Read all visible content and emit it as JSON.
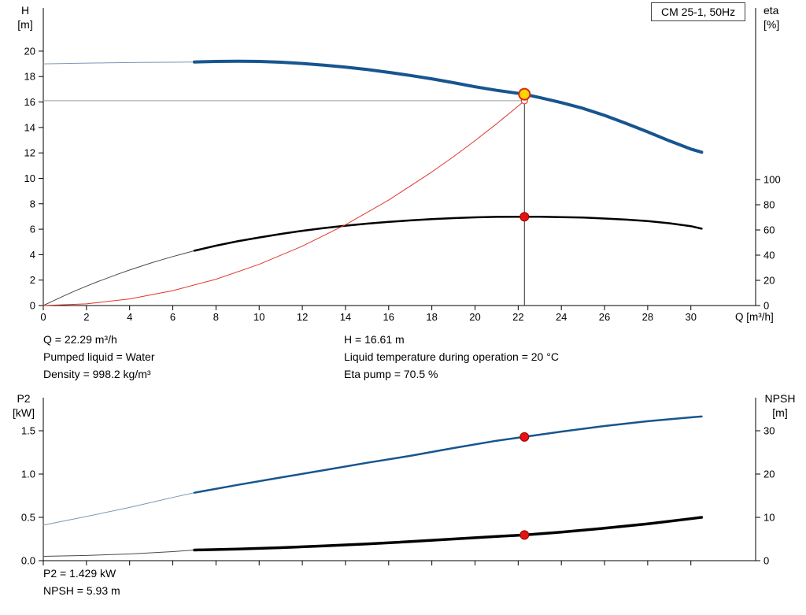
{
  "model_box": {
    "label": "CM 25-1, 50Hz"
  },
  "axis_labels": {
    "h_title": "H",
    "h_unit": "[m]",
    "eta_title": "eta",
    "eta_unit": "[%]",
    "q_label": "Q [m³/h]",
    "p2_title": "P2",
    "p2_unit": "[kW]",
    "npsh_title": "NPSH",
    "npsh_unit": "[m]"
  },
  "annotations": {
    "top_left": [
      "Q = 22.29 m³/h",
      "Pumped liquid = Water",
      "Density = 998.2 kg/m³"
    ],
    "top_right": [
      "H = 16.61 m",
      "Liquid temperature during operation = 20 °C",
      "Eta pump = 70.5 %"
    ],
    "bottom": [
      "P2 = 1.429 kW",
      "NPSH = 5.93 m"
    ]
  },
  "duty_point": {
    "Q": 22.29,
    "H": 16.61,
    "eta": 70.5,
    "P2": 1.429,
    "NPSH": 5.93
  },
  "chart_data": [
    {
      "type": "line",
      "title": "CM 25-1, 50Hz — QH and efficiency curves",
      "xlabel": "Q [m³/h]",
      "xlim": [
        0,
        33
      ],
      "x_ticks": [
        0,
        2,
        4,
        6,
        8,
        10,
        12,
        14,
        16,
        18,
        20,
        22,
        24,
        26,
        28,
        30
      ],
      "left_axis": {
        "label": "H [m]",
        "ticks": [
          0,
          2,
          4,
          6,
          8,
          10,
          12,
          14,
          16,
          18,
          20
        ],
        "lim": [
          0,
          23.4
        ]
      },
      "right_axis": {
        "label": "eta [%]",
        "ticks": [
          0,
          20,
          40,
          60,
          80,
          100
        ],
        "lim": [
          0,
          236.3
        ]
      },
      "grid": false,
      "legend": false,
      "series": [
        {
          "name": "h-curve-low-flow",
          "axis": "left",
          "color": "#7a97b6",
          "width": 1,
          "points": [
            [
              0,
              19.0
            ],
            [
              1.5,
              19.04
            ],
            [
              3,
              19.08
            ],
            [
              4.5,
              19.11
            ],
            [
              6,
              19.13
            ],
            [
              7,
              19.15
            ]
          ]
        },
        {
          "name": "h-curve",
          "axis": "left",
          "color": "#17558f",
          "width": 4,
          "points": [
            [
              7,
              19.15
            ],
            [
              8,
              19.19
            ],
            [
              9,
              19.21
            ],
            [
              10,
              19.19
            ],
            [
              11,
              19.13
            ],
            [
              12,
              19.03
            ],
            [
              13,
              18.9
            ],
            [
              14,
              18.74
            ],
            [
              15,
              18.55
            ],
            [
              16,
              18.33
            ],
            [
              17,
              18.09
            ],
            [
              18,
              17.82
            ],
            [
              19,
              17.52
            ],
            [
              20,
              17.2
            ],
            [
              21,
              16.92
            ],
            [
              22.29,
              16.61
            ],
            [
              23,
              16.35
            ],
            [
              24,
              15.95
            ],
            [
              25,
              15.5
            ],
            [
              26,
              14.95
            ],
            [
              27,
              14.32
            ],
            [
              28,
              13.65
            ],
            [
              29,
              12.95
            ],
            [
              30,
              12.3
            ],
            [
              30.5,
              12.05
            ]
          ]
        },
        {
          "name": "eta-curve-low-flow",
          "axis": "right",
          "color": "#4a4a4a",
          "width": 1,
          "points": [
            [
              0,
              0
            ],
            [
              0.5,
              4
            ],
            [
              1,
              8
            ],
            [
              1.5,
              11.8
            ],
            [
              2,
              15.4
            ],
            [
              2.5,
              18.8
            ],
            [
              3,
              22
            ],
            [
              3.5,
              25.2
            ],
            [
              4,
              28.2
            ],
            [
              4.5,
              31
            ],
            [
              5,
              33.8
            ],
            [
              5.5,
              36.4
            ],
            [
              6,
              38.9
            ],
            [
              6.5,
              41.2
            ],
            [
              7,
              43.5
            ]
          ]
        },
        {
          "name": "eta-curve",
          "axis": "right",
          "color": "#000000",
          "width": 2.5,
          "points": [
            [
              7,
              43.5
            ],
            [
              8,
              47.5
            ],
            [
              9,
              51
            ],
            [
              10,
              54
            ],
            [
              11,
              56.8
            ],
            [
              12,
              59.3
            ],
            [
              13,
              61.5
            ],
            [
              14,
              63.4
            ],
            [
              15,
              65
            ],
            [
              16,
              66.4
            ],
            [
              17,
              67.6
            ],
            [
              18,
              68.6
            ],
            [
              19,
              69.4
            ],
            [
              20,
              70
            ],
            [
              21,
              70.4
            ],
            [
              22.29,
              70.5
            ],
            [
              23,
              70.45
            ],
            [
              24,
              70.2
            ],
            [
              25,
              69.8
            ],
            [
              26,
              69.1
            ],
            [
              27,
              68.2
            ],
            [
              28,
              67
            ],
            [
              29,
              65.3
            ],
            [
              30,
              63
            ],
            [
              30.5,
              61
            ]
          ]
        },
        {
          "name": "system-curve",
          "axis": "left",
          "color": "#e0362c",
          "width": 1,
          "points": [
            [
              0,
              0
            ],
            [
              2,
              0.13
            ],
            [
              4,
              0.52
            ],
            [
              6,
              1.17
            ],
            [
              8,
              2.07
            ],
            [
              10,
              3.24
            ],
            [
              12,
              4.67
            ],
            [
              14,
              6.35
            ],
            [
              16,
              8.29
            ],
            [
              18,
              10.5
            ],
            [
              19,
              11.7
            ],
            [
              20,
              12.96
            ],
            [
              21,
              14.29
            ],
            [
              22,
              15.68
            ],
            [
              22.29,
              16.1
            ]
          ]
        }
      ],
      "guides": [
        {
          "type": "hline",
          "axis": "left",
          "y": 16.1,
          "x_from": 0,
          "x_to": 22.29,
          "color": "#9a9a9a",
          "width": 1
        },
        {
          "type": "vline",
          "axis": "left",
          "x": 22.29,
          "y_from": 0,
          "y_to": 16.61,
          "color": "#333333",
          "width": 1
        }
      ],
      "markers": [
        {
          "name": "system-point",
          "axis": "left",
          "x": 22.29,
          "y": 16.1,
          "r": 4,
          "fill": "#ffffff",
          "stroke": "#e0362c",
          "stroke_width": 1.2
        },
        {
          "name": "duty-point",
          "axis": "left",
          "x": 22.29,
          "y": 16.61,
          "r": 7,
          "fill": "#ffd400",
          "stroke": "#d42a1e",
          "stroke_width": 2
        },
        {
          "name": "eta-point",
          "axis": "right",
          "x": 22.29,
          "y": 70.5,
          "r": 5.5,
          "fill": "#e51212",
          "stroke": "#990000",
          "stroke_width": 1
        }
      ]
    },
    {
      "type": "line",
      "title": "P2 and NPSH curves",
      "xlabel": "",
      "xlim": [
        0,
        33
      ],
      "x_ticks": [
        0,
        2,
        4,
        6,
        8,
        10,
        12,
        14,
        16,
        18,
        20,
        22,
        24,
        26,
        28,
        30
      ],
      "left_axis": {
        "label": "P2 [kW]",
        "ticks": [
          0,
          0.5,
          1,
          1.5
        ],
        "tick_labels": [
          "0.0",
          "0.5",
          "1.0",
          "1.5"
        ],
        "lim": [
          0,
          1.882
        ]
      },
      "right_axis": {
        "label": "NPSH [m]",
        "ticks": [
          0,
          10,
          20,
          30
        ],
        "lim": [
          0,
          37.64
        ]
      },
      "grid": false,
      "legend": false,
      "series": [
        {
          "name": "p2-curve-low-flow",
          "axis": "left",
          "color": "#7a97b6",
          "width": 1,
          "points": [
            [
              0,
              0.41
            ],
            [
              2,
              0.51
            ],
            [
              4,
              0.615
            ],
            [
              6,
              0.73
            ],
            [
              7,
              0.785
            ]
          ]
        },
        {
          "name": "p2-curve",
          "axis": "left",
          "color": "#17558f",
          "width": 2.5,
          "points": [
            [
              7,
              0.785
            ],
            [
              9,
              0.875
            ],
            [
              11,
              0.96
            ],
            [
              13,
              1.045
            ],
            [
              15,
              1.13
            ],
            [
              17,
              1.21
            ],
            [
              19,
              1.3
            ],
            [
              21,
              1.385
            ],
            [
              22.29,
              1.429
            ],
            [
              24,
              1.49
            ],
            [
              26,
              1.555
            ],
            [
              28,
              1.61
            ],
            [
              30,
              1.655
            ],
            [
              30.5,
              1.665
            ]
          ]
        },
        {
          "name": "npsh-curve-low-flow",
          "axis": "right",
          "color": "#4a4a4a",
          "width": 1,
          "points": [
            [
              0,
              1.0
            ],
            [
              2,
              1.2
            ],
            [
              4,
              1.55
            ],
            [
              6,
              2.1
            ],
            [
              7,
              2.45
            ]
          ]
        },
        {
          "name": "npsh-curve",
          "axis": "right",
          "color": "#000000",
          "width": 3.5,
          "points": [
            [
              7,
              2.45
            ],
            [
              9,
              2.7
            ],
            [
              11,
              3.0
            ],
            [
              13,
              3.4
            ],
            [
              15,
              3.85
            ],
            [
              17,
              4.4
            ],
            [
              19,
              5.0
            ],
            [
              21,
              5.6
            ],
            [
              22.29,
              5.93
            ],
            [
              24,
              6.6
            ],
            [
              26,
              7.5
            ],
            [
              28,
              8.5
            ],
            [
              30,
              9.7
            ],
            [
              30.5,
              10.0
            ]
          ]
        }
      ],
      "guides": [],
      "markers": [
        {
          "name": "p2-point",
          "axis": "left",
          "x": 22.29,
          "y": 1.429,
          "r": 5.5,
          "fill": "#e51212",
          "stroke": "#990000",
          "stroke_width": 1
        },
        {
          "name": "npsh-point",
          "axis": "right",
          "x": 22.29,
          "y": 5.93,
          "r": 5.5,
          "fill": "#e51212",
          "stroke": "#990000",
          "stroke_width": 1
        }
      ]
    }
  ]
}
